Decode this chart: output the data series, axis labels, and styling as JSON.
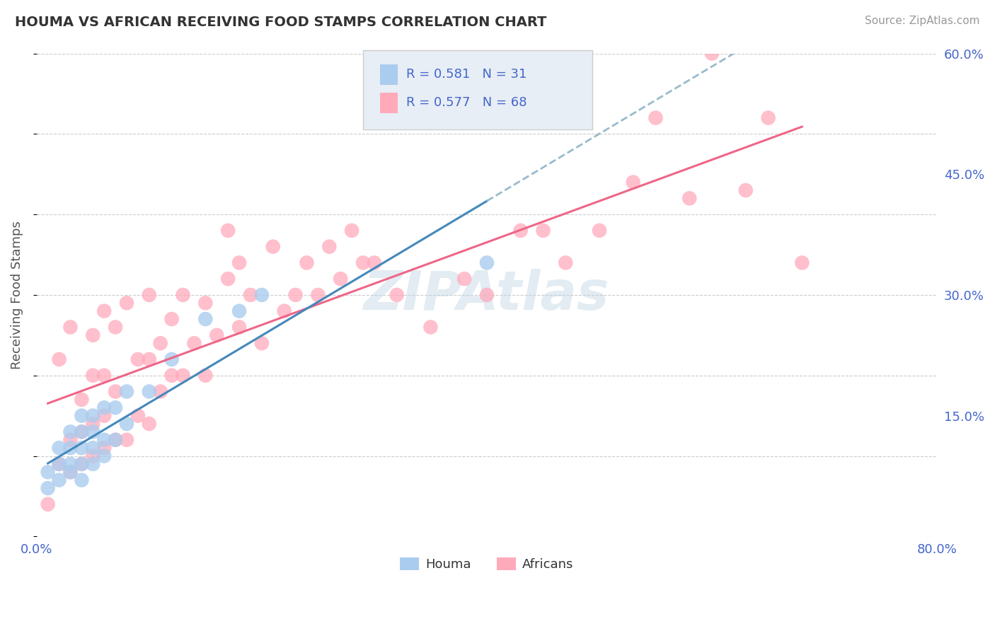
{
  "title": "HOUMA VS AFRICAN RECEIVING FOOD STAMPS CORRELATION CHART",
  "source": "Source: ZipAtlas.com",
  "ylabel": "Receiving Food Stamps",
  "xlim": [
    0.0,
    0.8
  ],
  "ylim": [
    0.0,
    0.6
  ],
  "xticks": [
    0.0,
    0.1,
    0.2,
    0.3,
    0.4,
    0.5,
    0.6,
    0.7,
    0.8
  ],
  "xticklabels": [
    "0.0%",
    "",
    "",
    "",
    "",
    "",
    "",
    "",
    "80.0%"
  ],
  "yticks": [
    0.0,
    0.15,
    0.3,
    0.45,
    0.6
  ],
  "yticklabels_right": [
    "",
    "15.0%",
    "30.0%",
    "45.0%",
    "60.0%"
  ],
  "watermark": "ZIPAtlas",
  "houma_R": 0.581,
  "houma_N": 31,
  "african_R": 0.577,
  "african_N": 68,
  "houma_color": "#aaccee",
  "african_color": "#ffaabb",
  "houma_line_color": "#4488bb",
  "african_line_color": "#ee6688",
  "houma_dash_color": "#99bbcc",
  "background_color": "#ffffff",
  "grid_color": "#cccccc",
  "houma_x": [
    0.01,
    0.01,
    0.02,
    0.02,
    0.02,
    0.03,
    0.03,
    0.03,
    0.03,
    0.04,
    0.04,
    0.04,
    0.04,
    0.04,
    0.05,
    0.05,
    0.05,
    0.05,
    0.06,
    0.06,
    0.06,
    0.07,
    0.07,
    0.08,
    0.08,
    0.1,
    0.12,
    0.15,
    0.18,
    0.2,
    0.4
  ],
  "houma_y": [
    0.06,
    0.08,
    0.07,
    0.09,
    0.11,
    0.08,
    0.09,
    0.11,
    0.13,
    0.07,
    0.09,
    0.11,
    0.13,
    0.15,
    0.09,
    0.11,
    0.13,
    0.15,
    0.1,
    0.12,
    0.16,
    0.12,
    0.16,
    0.14,
    0.18,
    0.18,
    0.22,
    0.27,
    0.28,
    0.3,
    0.34
  ],
  "african_x": [
    0.01,
    0.02,
    0.02,
    0.03,
    0.03,
    0.03,
    0.04,
    0.04,
    0.04,
    0.05,
    0.05,
    0.05,
    0.05,
    0.06,
    0.06,
    0.06,
    0.06,
    0.07,
    0.07,
    0.07,
    0.08,
    0.08,
    0.09,
    0.09,
    0.1,
    0.1,
    0.1,
    0.11,
    0.11,
    0.12,
    0.12,
    0.13,
    0.13,
    0.14,
    0.15,
    0.15,
    0.16,
    0.17,
    0.17,
    0.18,
    0.18,
    0.19,
    0.2,
    0.21,
    0.22,
    0.23,
    0.24,
    0.25,
    0.26,
    0.27,
    0.28,
    0.29,
    0.3,
    0.32,
    0.35,
    0.38,
    0.4,
    0.43,
    0.45,
    0.47,
    0.5,
    0.53,
    0.55,
    0.58,
    0.6,
    0.63,
    0.65,
    0.68
  ],
  "african_y": [
    0.04,
    0.09,
    0.22,
    0.08,
    0.12,
    0.26,
    0.09,
    0.13,
    0.17,
    0.1,
    0.14,
    0.2,
    0.25,
    0.11,
    0.15,
    0.2,
    0.28,
    0.12,
    0.18,
    0.26,
    0.12,
    0.29,
    0.15,
    0.22,
    0.14,
    0.22,
    0.3,
    0.18,
    0.24,
    0.2,
    0.27,
    0.2,
    0.3,
    0.24,
    0.2,
    0.29,
    0.25,
    0.32,
    0.38,
    0.26,
    0.34,
    0.3,
    0.24,
    0.36,
    0.28,
    0.3,
    0.34,
    0.3,
    0.36,
    0.32,
    0.38,
    0.34,
    0.34,
    0.3,
    0.26,
    0.32,
    0.3,
    0.38,
    0.38,
    0.34,
    0.38,
    0.44,
    0.52,
    0.42,
    0.6,
    0.43,
    0.52,
    0.34
  ],
  "legend_box_color": "#e8eef5",
  "legend_box_edge": "#cccccc",
  "legend_text_color": "#4466cc",
  "legend_label_color": "#333333",
  "title_color": "#333333",
  "source_color": "#999999",
  "ylabel_color": "#555555",
  "tick_color": "#4466cc"
}
